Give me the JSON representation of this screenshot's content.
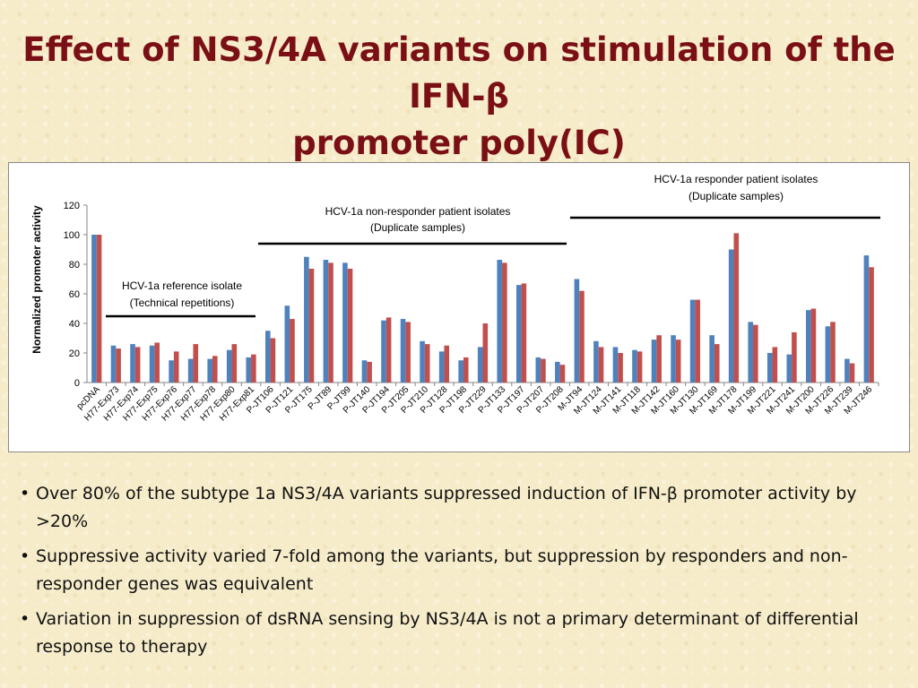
{
  "slide": {
    "title_line1": "Effect of NS3/4A variants on stimulation of the IFN-β",
    "title_line2": "promoter poly(IC)",
    "bullets": [
      "Over 80% of the subtype 1a NS3/4A variants suppressed induction of IFN-β promoter activity by >20%",
      "Suppressive activity varied 7-fold among the variants, but suppression by responders and non-responder genes was equivalent",
      "Variation in suppression of dsRNA sensing by NS3/4A is not a primary determinant of differential response to therapy"
    ]
  },
  "colors": {
    "series1": "#4f81bd",
    "series2": "#c0504d",
    "title": "#7a1016"
  },
  "chart_data": {
    "type": "bar",
    "title": "",
    "ylabel": "Normalized promoter activity",
    "xlabel": "",
    "ylim": [
      0,
      120
    ],
    "yticks": [
      "0",
      "20",
      "40",
      "60",
      "80",
      "100",
      "120"
    ],
    "legend": "none",
    "grid": false,
    "categories": [
      "pcDNA",
      "H77-Exp73",
      "H77-Exp74",
      "H77-Exp75",
      "H77-Exp76",
      "H77-Exp77",
      "H77-Exp78",
      "H77-Exp80",
      "H77-Exp81",
      "P-JT106",
      "P-JT121",
      "P-JT175",
      "P-JT89",
      "P-JT99",
      "P-JT140",
      "P-JT194",
      "P-JT205",
      "P-JT210",
      "P-JT128",
      "P-JT198",
      "P-JT229",
      "P-JT133",
      "P-JT197",
      "P-JT207",
      "P-JT208",
      "M-JT94",
      "M-JT124",
      "M-JT141",
      "M-JT118",
      "M-JT142",
      "M-JT160",
      "M-JT130",
      "M-JT169",
      "M-JT178",
      "M-JT199",
      "M-JT221",
      "M-JT241",
      "M-JT200",
      "M-JT226",
      "M-JT239",
      "M-JT246"
    ],
    "series": [
      {
        "values": [
          100,
          25,
          26,
          25,
          15,
          16,
          16,
          22,
          17,
          35,
          52,
          85,
          83,
          81,
          15,
          42,
          43,
          28,
          21,
          15,
          24,
          83,
          66,
          17,
          14,
          70,
          28,
          24,
          22,
          29,
          32,
          56,
          32,
          90,
          41,
          20,
          19,
          49,
          38,
          16,
          86
        ]
      },
      {
        "values": [
          100,
          23,
          24,
          27,
          21,
          26,
          18,
          26,
          19,
          30,
          43,
          77,
          81,
          77,
          14,
          44,
          41,
          26,
          25,
          17,
          40,
          81,
          67,
          16,
          12,
          62,
          24,
          20,
          21,
          32,
          29,
          56,
          26,
          101,
          39,
          24,
          34,
          50,
          41,
          13,
          78
        ]
      }
    ],
    "annotations": [
      {
        "line1": "HCV-1a reference isolate",
        "line2": "(Technical repetitions)"
      },
      {
        "line1": "HCV-1a non-responder patient isolates",
        "line2": "(Duplicate samples)"
      },
      {
        "line1": "HCV-1a responder patient isolates",
        "line2": "(Duplicate samples)"
      }
    ]
  }
}
